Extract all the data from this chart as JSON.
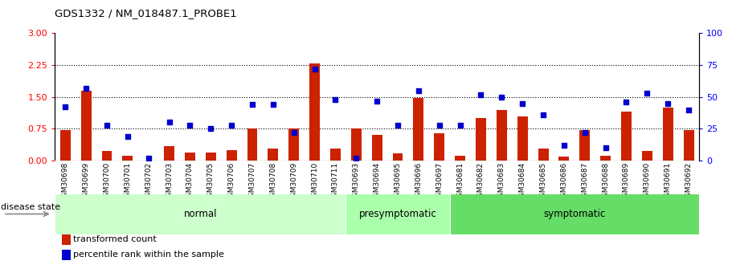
{
  "title": "GDS1332 / NM_018487.1_PROBE1",
  "samples": [
    "GSM30698",
    "GSM30699",
    "GSM30700",
    "GSM30701",
    "GSM30702",
    "GSM30703",
    "GSM30704",
    "GSM30705",
    "GSM30706",
    "GSM30707",
    "GSM30708",
    "GSM30709",
    "GSM30710",
    "GSM30711",
    "GSM30693",
    "GSM30694",
    "GSM30695",
    "GSM30696",
    "GSM30697",
    "GSM30681",
    "GSM30682",
    "GSM30683",
    "GSM30684",
    "GSM30685",
    "GSM30686",
    "GSM30687",
    "GSM30688",
    "GSM30689",
    "GSM30690",
    "GSM30691",
    "GSM30692"
  ],
  "bar_values": [
    0.72,
    1.65,
    0.22,
    0.12,
    0.0,
    0.35,
    0.2,
    0.2,
    0.25,
    0.75,
    0.28,
    0.75,
    2.28,
    0.28,
    0.75,
    0.6,
    0.18,
    1.48,
    0.65,
    0.12,
    1.0,
    1.2,
    1.05,
    0.28,
    0.1,
    0.72,
    0.12,
    1.15,
    0.22,
    1.25,
    0.72
  ],
  "blue_percentile": [
    42,
    57,
    28,
    19,
    2,
    30,
    28,
    25,
    28,
    44,
    44,
    22,
    72,
    48,
    2,
    47,
    28,
    55,
    28,
    28,
    52,
    50,
    45,
    36,
    12,
    22,
    10,
    46,
    53,
    45,
    40
  ],
  "groups": [
    {
      "name": "normal",
      "start": 0,
      "end": 14,
      "color": "#ccffcc"
    },
    {
      "name": "presymptomatic",
      "start": 14,
      "end": 19,
      "color": "#aaffaa"
    },
    {
      "name": "symptomatic",
      "start": 19,
      "end": 31,
      "color": "#66dd66"
    }
  ],
  "ylim_left": [
    0,
    3
  ],
  "ylim_right": [
    0,
    100
  ],
  "yticks_left": [
    0,
    0.75,
    1.5,
    2.25,
    3.0
  ],
  "yticks_right": [
    0,
    25,
    50,
    75,
    100
  ],
  "bar_color": "#cc2200",
  "blue_color": "#0000cc",
  "bg_color": "#ffffff",
  "disease_state_label": "disease state",
  "legend_bar": "transformed count",
  "legend_blue": "percentile rank within the sample",
  "ticklabel_bg": "#bbbbbb"
}
